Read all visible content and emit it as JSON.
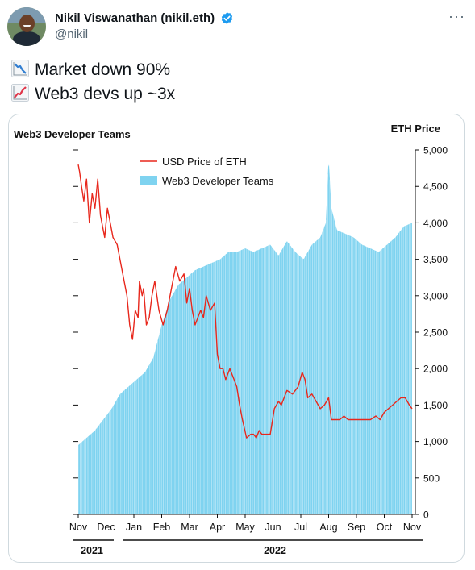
{
  "tweet": {
    "author_name": "Nikil Viswanathan (nikil.eth)",
    "handle": "@nikil",
    "lines": [
      {
        "emoji_icon": "chart-decreasing-icon",
        "text": "Market down 90%"
      },
      {
        "emoji_icon": "chart-increasing-icon",
        "text": "Web3 devs up ~3x"
      }
    ],
    "more_icon": "more-dots-icon"
  },
  "chart_data": {
    "type": "area",
    "left_title": "Web3 Developer Teams",
    "right_title": "ETH Price",
    "legend": [
      "USD Price of ETH",
      "Web3 Developer Teams"
    ],
    "months": [
      "Nov",
      "Dec",
      "Jan",
      "Feb",
      "Mar",
      "Apr",
      "May",
      "Jun",
      "Jul",
      "Aug",
      "Sep",
      "Oct",
      "Nov"
    ],
    "years": [
      "2021",
      "2022"
    ],
    "yticks_right": [
      "0",
      "500",
      "1,000",
      "1,500",
      "2,000",
      "2,500",
      "3,000",
      "3,500",
      "4,000",
      "4,500",
      "5,000"
    ],
    "ylim_right": [
      0,
      5000
    ],
    "grid": false,
    "colors": {
      "eth": "#e8271c",
      "devs": "#7fd3f0",
      "devs_line": "#5cc4ea"
    },
    "series": [
      {
        "name": "USD Price of ETH",
        "x": [
          0,
          0.05,
          0.12,
          0.2,
          0.3,
          0.4,
          0.5,
          0.6,
          0.7,
          0.8,
          0.95,
          1.05,
          1.15,
          1.25,
          1.4,
          1.6,
          1.75,
          1.85,
          1.95,
          2.05,
          2.15,
          2.2,
          2.3,
          2.35,
          2.45,
          2.55,
          2.65,
          2.75,
          2.9,
          3.05,
          3.2,
          3.35,
          3.5,
          3.65,
          3.8,
          3.9,
          4.0,
          4.1,
          4.2,
          4.3,
          4.4,
          4.5,
          4.6,
          4.75,
          4.9,
          5.0,
          5.1,
          5.2,
          5.3,
          5.45,
          5.6,
          5.7,
          5.8,
          5.9,
          6.05,
          6.2,
          6.3,
          6.4,
          6.5,
          6.6,
          6.75,
          6.9,
          7.05,
          7.2,
          7.3,
          7.5,
          7.7,
          7.9,
          8.05,
          8.15,
          8.25,
          8.4,
          8.55,
          8.7,
          8.85,
          9.0,
          9.1,
          9.25,
          9.4,
          9.55,
          9.7,
          9.85,
          10.0,
          10.15,
          10.3,
          10.5,
          10.7,
          10.85,
          11.0,
          11.15,
          11.3,
          11.45,
          11.6,
          11.75,
          11.9,
          12.0
        ],
        "y": [
          4800,
          4700,
          4500,
          4300,
          4600,
          4000,
          4400,
          4200,
          4600,
          4100,
          3800,
          4200,
          4000,
          3800,
          3700,
          3300,
          3000,
          2600,
          2400,
          2800,
          2700,
          3200,
          3000,
          3100,
          2600,
          2700,
          3000,
          3200,
          2800,
          2600,
          2800,
          3100,
          3400,
          3200,
          3300,
          2900,
          3100,
          2800,
          2600,
          2700,
          2800,
          2700,
          3000,
          2800,
          2900,
          2200,
          2000,
          2000,
          1850,
          2000,
          1850,
          1750,
          1500,
          1300,
          1050,
          1100,
          1100,
          1050,
          1150,
          1100,
          1100,
          1100,
          1450,
          1550,
          1500,
          1700,
          1650,
          1750,
          1950,
          1850,
          1600,
          1650,
          1550,
          1450,
          1500,
          1600,
          1300,
          1300,
          1300,
          1350,
          1300,
          1300,
          1300,
          1300,
          1300,
          1300,
          1350,
          1300,
          1400,
          1450,
          1500,
          1550,
          1600,
          1600,
          1500,
          1450
        ]
      },
      {
        "name": "Web3 Developer Teams",
        "x": [
          0,
          0.3,
          0.6,
          0.9,
          1.2,
          1.5,
          1.8,
          2.1,
          2.4,
          2.7,
          3.0,
          3.3,
          3.6,
          3.9,
          4.2,
          4.5,
          4.8,
          5.1,
          5.4,
          5.7,
          6.0,
          6.3,
          6.6,
          6.9,
          7.2,
          7.5,
          7.8,
          8.1,
          8.4,
          8.7,
          8.9,
          9.0,
          9.1,
          9.3,
          9.6,
          9.9,
          10.2,
          10.5,
          10.8,
          11.1,
          11.4,
          11.7,
          12.0
        ],
        "y": [
          950,
          1050,
          1150,
          1300,
          1450,
          1650,
          1750,
          1850,
          1950,
          2150,
          2600,
          2950,
          3150,
          3250,
          3350,
          3400,
          3450,
          3500,
          3600,
          3600,
          3650,
          3600,
          3650,
          3700,
          3550,
          3750,
          3600,
          3500,
          3700,
          3800,
          4000,
          4900,
          4200,
          3900,
          3850,
          3800,
          3700,
          3650,
          3600,
          3700,
          3800,
          3950,
          4000
        ]
      }
    ]
  }
}
